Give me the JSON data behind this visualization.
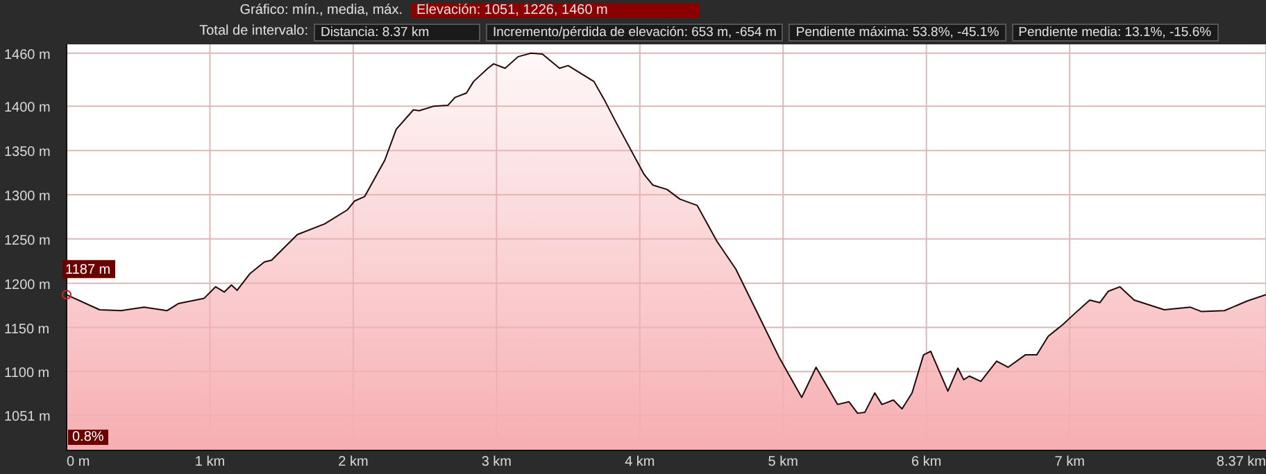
{
  "chart_data": {
    "type": "area",
    "annotations": [
      "Gráfico: mín., media, máx.",
      "Elevación: 1051, 1226, 1460 m",
      "Total de intervalo:",
      "Distancia: 8.37 km",
      "Incremento/pérdida de elevación: 653 m, -654 m",
      "Pendiente máxima: 53.8%, -45.1%",
      "Pendiente media: 13.1%, -15.6%",
      "0.8%",
      {
        "text": "1187 m",
        "x": 0,
        "y": 1187
      }
    ],
    "x": [
      0,
      0.23,
      0.38,
      0.54,
      0.7,
      0.78,
      0.96,
      1.04,
      1.1,
      1.15,
      1.19,
      1.28,
      1.38,
      1.43,
      1.61,
      1.8,
      1.96,
      2.01,
      2.08,
      2.22,
      2.3,
      2.42,
      2.46,
      2.56,
      2.66,
      2.71,
      2.79,
      2.84,
      2.94,
      2.98,
      3.06,
      3.15,
      3.24,
      3.32,
      3.44,
      3.5,
      3.68,
      3.75,
      3.84,
      3.9,
      4.03,
      4.09,
      4.19,
      4.28,
      4.4,
      4.54,
      4.67,
      4.84,
      4.97,
      5.13,
      5.23,
      5.38,
      5.46,
      5.52,
      5.57,
      5.64,
      5.69,
      5.77,
      5.83,
      5.9,
      5.98,
      6.03,
      6.15,
      6.22,
      6.26,
      6.3,
      6.38,
      6.49,
      6.57,
      6.69,
      6.77,
      6.85,
      6.95,
      7.03,
      7.14,
      7.21,
      7.27,
      7.35,
      7.45,
      7.66,
      7.84,
      7.92,
      8.08,
      8.24,
      8.37
    ],
    "series": [
      {
        "color": "#f6aeb2",
        "values": [
          1187,
          1170,
          1169,
          1173,
          1169,
          1177,
          1183,
          1196,
          1190,
          1198,
          1192,
          1211,
          1224,
          1226,
          1255,
          1267,
          1283,
          1293,
          1298,
          1339,
          1374,
          1396,
          1395,
          1400,
          1401,
          1410,
          1415,
          1428,
          1443,
          1448,
          1443,
          1456,
          1460,
          1459,
          1443,
          1446,
          1428,
          1408,
          1380,
          1362,
          1323,
          1311,
          1306,
          1295,
          1288,
          1247,
          1216,
          1160,
          1117,
          1071,
          1105,
          1063,
          1066,
          1053,
          1054,
          1076,
          1063,
          1068,
          1058,
          1076,
          1119,
          1123,
          1078,
          1104,
          1091,
          1095,
          1089,
          1112,
          1105,
          1119,
          1119,
          1140,
          1153,
          1165,
          1181,
          1178,
          1191,
          1196,
          1181,
          1170,
          1173,
          1168,
          1169,
          1180,
          1187
        ]
      }
    ],
    "xlim": [
      0,
      8.37
    ],
    "xticks": [
      {
        "value": 0,
        "label": "0 m"
      },
      {
        "value": 1,
        "label": "1 km"
      },
      {
        "value": 2,
        "label": "2 km"
      },
      {
        "value": 3,
        "label": "3 km"
      },
      {
        "value": 4,
        "label": "4 km"
      },
      {
        "value": 5,
        "label": "5 km"
      },
      {
        "value": 6,
        "label": "6 km"
      },
      {
        "value": 7,
        "label": "7 km"
      },
      {
        "value": 8.37,
        "label": "8.37 km"
      }
    ],
    "ylim": [
      1011,
      1470
    ],
    "yticks": [
      {
        "value": 1051,
        "label": "1051 m"
      },
      {
        "value": 1100,
        "label": "1100 m"
      },
      {
        "value": 1150,
        "label": "1150 m"
      },
      {
        "value": 1200,
        "label": "1200 m"
      },
      {
        "value": 1250,
        "label": "1250 m"
      },
      {
        "value": 1300,
        "label": "1300 m"
      },
      {
        "value": 1350,
        "label": "1350 m"
      },
      {
        "value": 1400,
        "label": "1400 m"
      },
      {
        "value": 1460,
        "label": "1460 m"
      }
    ],
    "grid": true
  }
}
